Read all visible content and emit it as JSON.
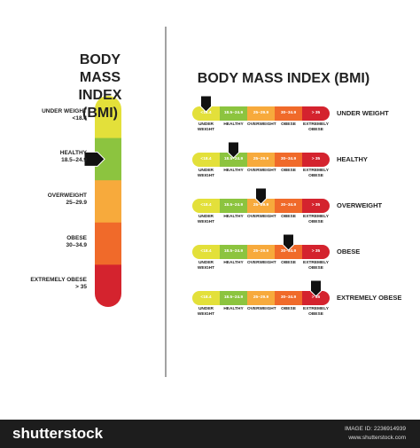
{
  "left_title": "BODY MASS INDEX (BMI)",
  "right_title": "BODY MASS INDEX (BMI)",
  "categories": [
    {
      "name": "UNDER WEIGHT",
      "range": "<18.4",
      "color": "#e3e03a"
    },
    {
      "name": "HEALTHY",
      "range": "18.5–24.9",
      "color": "#8cc43f"
    },
    {
      "name": "OVERWEIGHT",
      "range": "25–29.9",
      "color": "#f7aa3c"
    },
    {
      "name": "OBESE",
      "range": "30–34.9",
      "color": "#f06a2a"
    },
    {
      "name": "EXTREMELY OBESE",
      "range": "> 35",
      "color": "#d4232e"
    }
  ],
  "left_pointer": 1,
  "footer": {
    "brand": "shutterstock",
    "image_id": "IMAGE ID: 2236914939",
    "site": "www.shutterstock.com"
  }
}
